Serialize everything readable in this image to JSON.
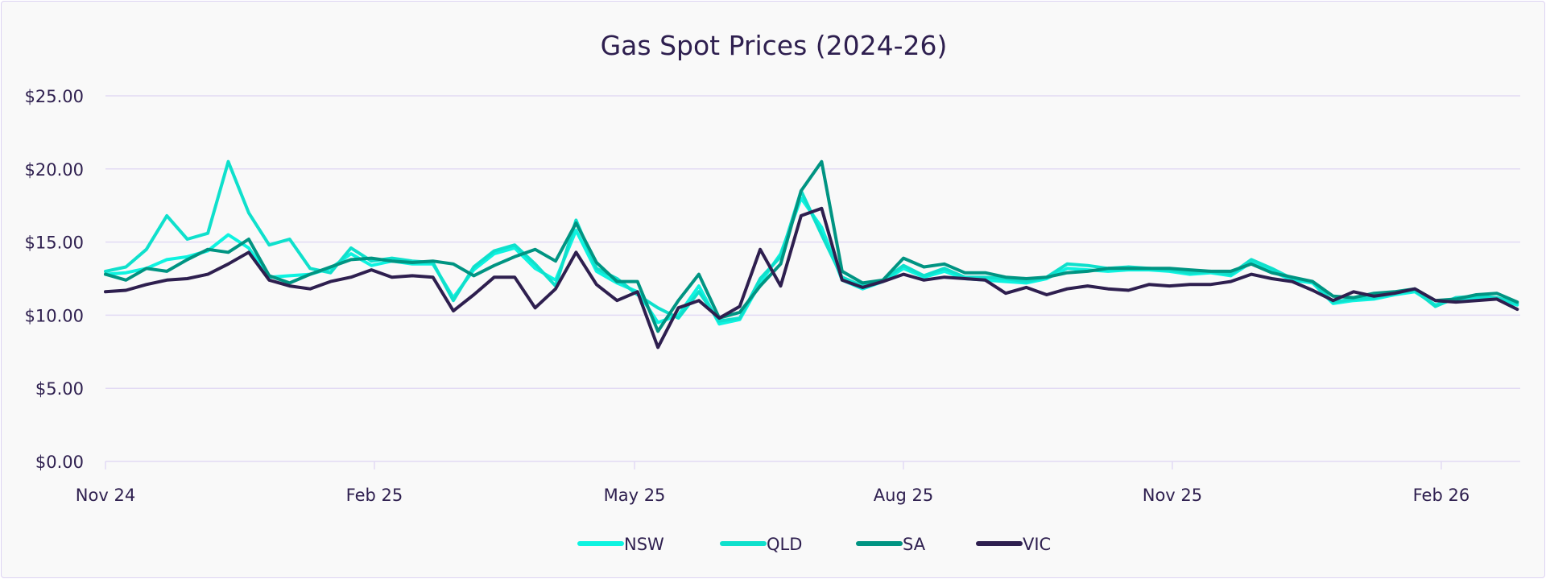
{
  "chart_data": {
    "type": "line",
    "title": "Gas Spot Prices (2024-26)",
    "xlabel": "",
    "ylabel": "",
    "ylim": [
      0,
      25
    ],
    "y_ticks": [
      0,
      5,
      10,
      15,
      20,
      25
    ],
    "y_tick_labels": [
      "$0.00",
      "$5.00",
      "$10.00",
      "$15.00",
      "$20.00",
      "$25.00"
    ],
    "x_ticks": [
      "2024-11-01",
      "2025-02-01",
      "2025-05-01",
      "2025-08-01",
      "2025-11-01",
      "2026-02-01"
    ],
    "x_tick_labels": [
      "Nov 24",
      "Feb 25",
      "May 25",
      "Aug 25",
      "Nov 25",
      "Feb 26"
    ],
    "x_start": "2024-11-01",
    "x_step_days": 7,
    "grid": true,
    "legend_position": "bottom-center",
    "series": [
      {
        "name": "NSW",
        "color": "#0ef3e0",
        "values": [
          12.8,
          12.9,
          13.2,
          13.8,
          14.0,
          14.4,
          15.5,
          14.6,
          12.6,
          12.7,
          12.8,
          13.2,
          14.2,
          13.4,
          13.7,
          13.5,
          13.5,
          11.2,
          13.1,
          14.2,
          14.6,
          13.2,
          12.4,
          15.8,
          13.0,
          12.2,
          11.6,
          9.5,
          10.0,
          12.0,
          9.4,
          9.7,
          12.2,
          14.2,
          18.0,
          16.0,
          12.4,
          11.8,
          12.3,
          13.2,
          12.6,
          13.0,
          12.5,
          12.4,
          12.3,
          12.2,
          12.5,
          13.2,
          13.1,
          13.0,
          13.1,
          13.1,
          13.0,
          12.8,
          12.9,
          12.7,
          13.6,
          13.0,
          12.4,
          12.2,
          10.8,
          11.0,
          11.1,
          11.4,
          11.6,
          10.7,
          11.1,
          11.2,
          11.1,
          10.7
        ]
      },
      {
        "name": "QLD",
        "color": "#0fe0cc",
        "values": [
          13.0,
          13.3,
          14.5,
          16.8,
          15.2,
          15.6,
          20.5,
          17.0,
          14.8,
          15.2,
          13.2,
          12.9,
          14.6,
          13.7,
          13.9,
          13.7,
          13.6,
          11.0,
          13.3,
          14.4,
          14.8,
          13.5,
          12.0,
          16.5,
          13.2,
          12.5,
          11.4,
          10.5,
          9.8,
          11.6,
          9.6,
          9.8,
          12.5,
          14.0,
          18.5,
          15.5,
          12.6,
          12.0,
          12.4,
          13.4,
          12.7,
          13.2,
          12.6,
          12.6,
          12.5,
          12.3,
          12.6,
          13.5,
          13.4,
          13.2,
          13.3,
          13.2,
          13.1,
          12.9,
          13.0,
          12.8,
          13.8,
          13.2,
          12.5,
          12.3,
          10.9,
          11.1,
          11.2,
          11.5,
          11.7,
          10.6,
          11.2,
          11.3,
          11.2,
          10.8
        ]
      },
      {
        "name": "SA",
        "color": "#009482",
        "values": [
          12.8,
          12.4,
          13.2,
          13.0,
          13.8,
          14.5,
          14.3,
          15.2,
          12.7,
          12.2,
          12.8,
          13.3,
          13.8,
          13.9,
          13.7,
          13.6,
          13.7,
          13.5,
          12.7,
          13.4,
          14.0,
          14.5,
          13.7,
          16.3,
          13.6,
          12.3,
          12.3,
          8.9,
          11.0,
          12.8,
          9.8,
          10.2,
          12.0,
          13.5,
          18.5,
          20.5,
          13.0,
          12.2,
          12.4,
          13.9,
          13.3,
          13.5,
          12.9,
          12.9,
          12.6,
          12.5,
          12.6,
          12.9,
          13.0,
          13.2,
          13.2,
          13.2,
          13.2,
          13.1,
          13.0,
          13.0,
          13.5,
          12.9,
          12.6,
          12.3,
          11.3,
          11.2,
          11.5,
          11.6,
          11.8,
          11.0,
          11.1,
          11.4,
          11.5,
          10.9
        ]
      },
      {
        "name": "VIC",
        "color": "#2e1f4f",
        "values": [
          11.6,
          11.7,
          12.1,
          12.4,
          12.5,
          12.8,
          13.5,
          14.3,
          12.4,
          12.0,
          11.8,
          12.3,
          12.6,
          13.1,
          12.6,
          12.7,
          12.6,
          10.3,
          11.4,
          12.6,
          12.6,
          10.5,
          11.8,
          14.3,
          12.1,
          11.0,
          11.6,
          7.8,
          10.5,
          11.0,
          9.8,
          10.6,
          14.5,
          12.0,
          16.8,
          17.3,
          12.4,
          11.9,
          12.3,
          12.8,
          12.4,
          12.6,
          12.5,
          12.4,
          11.5,
          11.9,
          11.4,
          11.8,
          12.0,
          11.8,
          11.7,
          12.1,
          12.0,
          12.1,
          12.1,
          12.3,
          12.8,
          12.5,
          12.3,
          11.7,
          11.0,
          11.6,
          11.3,
          11.5,
          11.8,
          11.0,
          10.9,
          11.0,
          11.1,
          10.4
        ]
      }
    ]
  }
}
